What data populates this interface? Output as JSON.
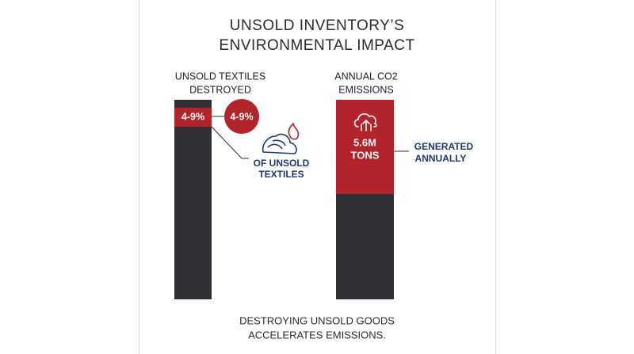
{
  "title": [
    "UNSOLD INVENTORY’S",
    "ENVIRONMENTAL IMPACT"
  ],
  "panels": [
    {
      "label": [
        "UNSOLD TEXTILES",
        "DESTROYED"
      ],
      "bar_text": "4-9%",
      "badge": "4-9%",
      "note": [
        "OF UNSOLD",
        "TEXTILES"
      ]
    },
    {
      "label": [
        "ANNUAL CO2",
        "EMISSIONS"
      ],
      "bar_text": [
        "5.6M",
        "TONS"
      ],
      "note": [
        "GENERATED",
        "ANNUALLY"
      ]
    }
  ],
  "footer": [
    "DESTROYING UNSOLD GOODS",
    "ACCELERATES EMISSIONS."
  ]
}
